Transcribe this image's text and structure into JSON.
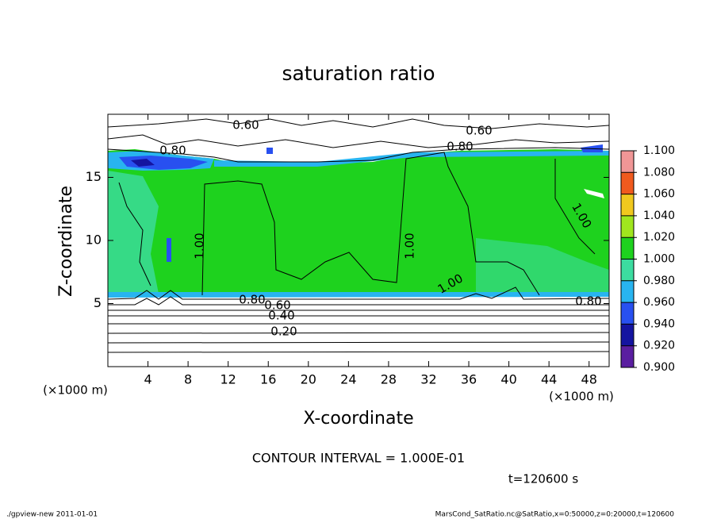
{
  "chart_data": {
    "type": "contour",
    "title": "saturation ratio",
    "x_label": "X-coordinate",
    "y_label": "Z-coordinate",
    "x_unit": "(×1000 m)",
    "y_unit": "(×1000 m)",
    "xlim": [
      0,
      50
    ],
    "xticks": [
      4,
      8,
      12,
      16,
      20,
      24,
      28,
      32,
      36,
      40,
      44,
      48
    ],
    "ylim": [
      0,
      20
    ],
    "yticks": [
      5,
      10,
      15
    ],
    "contour_labels": [
      {
        "value": 0.6,
        "label": "0.60"
      },
      {
        "value": 0.6,
        "label": "0.60"
      },
      {
        "value": 0.8,
        "label": "0.80"
      },
      {
        "value": 0.8,
        "label": "0.80"
      },
      {
        "value": 1.0,
        "label": "1.00"
      },
      {
        "value": 1.0,
        "label": "1.00"
      },
      {
        "value": 1.0,
        "label": "1.00"
      },
      {
        "value": 1.0,
        "label": "1.00"
      },
      {
        "value": 0.8,
        "label": "0.80"
      },
      {
        "value": 0.6,
        "label": "0.60"
      },
      {
        "value": 0.4,
        "label": "0.40"
      },
      {
        "value": 0.2,
        "label": "0.20"
      },
      {
        "value": 0.8,
        "label": "0.80"
      }
    ],
    "colorbar": {
      "levels": [
        {
          "value": 0.9,
          "label": "0.900"
        },
        {
          "value": 0.92,
          "label": "0.920"
        },
        {
          "value": 0.94,
          "label": "0.940"
        },
        {
          "value": 0.96,
          "label": "0.960"
        },
        {
          "value": 0.98,
          "label": "0.980"
        },
        {
          "value": 1.0,
          "label": "1.000"
        },
        {
          "value": 1.02,
          "label": "1.020"
        },
        {
          "value": 1.04,
          "label": "1.040"
        },
        {
          "value": 1.06,
          "label": "1.060"
        },
        {
          "value": 1.08,
          "label": "1.080"
        },
        {
          "value": 1.1,
          "label": "1.100"
        }
      ],
      "colors": [
        "#5a1ea0",
        "#1414a0",
        "#2850f0",
        "#28b4f0",
        "#3cdca0",
        "#1ed21e",
        "#a0e61e",
        "#f0c81e",
        "#f05a1e",
        "#f09696"
      ]
    },
    "contour_interval": "CONTOUR INTERVAL = 1.000E-01",
    "time": "t=120600 s",
    "footer_left": "./gpview-new   2011-01-01",
    "footer_right": "MarsCond_SatRatio.nc@SatRatio,x=0:50000,z=0:20000,t=120600"
  }
}
